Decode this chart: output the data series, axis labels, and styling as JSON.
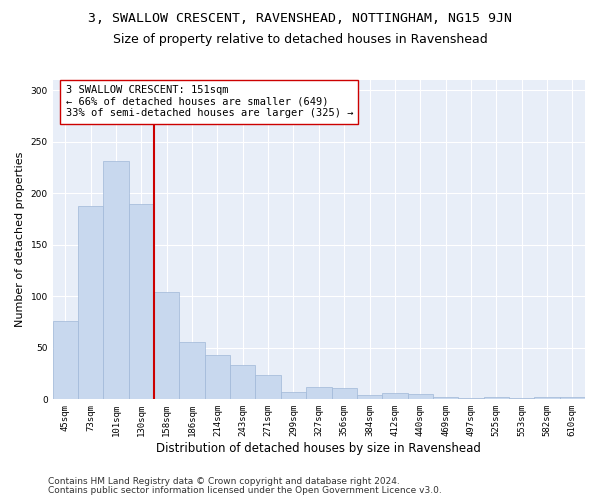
{
  "title": "3, SWALLOW CRESCENT, RAVENSHEAD, NOTTINGHAM, NG15 9JN",
  "subtitle": "Size of property relative to detached houses in Ravenshead",
  "xlabel": "Distribution of detached houses by size in Ravenshead",
  "ylabel": "Number of detached properties",
  "bar_color": "#c8d8ee",
  "bar_edge_color": "#a0b8d8",
  "annotation_box_color": "#ffffff",
  "annotation_box_edge": "#cc0000",
  "vline_color": "#cc0000",
  "background_color": "#e8eef8",
  "grid_color": "#ffffff",
  "fig_background": "#ffffff",
  "categories": [
    "45sqm",
    "73sqm",
    "101sqm",
    "130sqm",
    "158sqm",
    "186sqm",
    "214sqm",
    "243sqm",
    "271sqm",
    "299sqm",
    "327sqm",
    "356sqm",
    "384sqm",
    "412sqm",
    "440sqm",
    "469sqm",
    "497sqm",
    "525sqm",
    "553sqm",
    "582sqm",
    "610sqm"
  ],
  "values": [
    76,
    188,
    231,
    190,
    104,
    56,
    43,
    33,
    24,
    7,
    12,
    11,
    4,
    6,
    5,
    2,
    1,
    2,
    1,
    2,
    2
  ],
  "annotation_text": "3 SWALLOW CRESCENT: 151sqm\n← 66% of detached houses are smaller (649)\n33% of semi-detached houses are larger (325) →",
  "footnote1": "Contains HM Land Registry data © Crown copyright and database right 2024.",
  "footnote2": "Contains public sector information licensed under the Open Government Licence v3.0.",
  "ylim": [
    0,
    310
  ],
  "title_fontsize": 9.5,
  "subtitle_fontsize": 9,
  "annot_fontsize": 7.5,
  "ylabel_fontsize": 8,
  "xlabel_fontsize": 8.5,
  "tick_fontsize": 6.5,
  "footer_fontsize": 6.5
}
